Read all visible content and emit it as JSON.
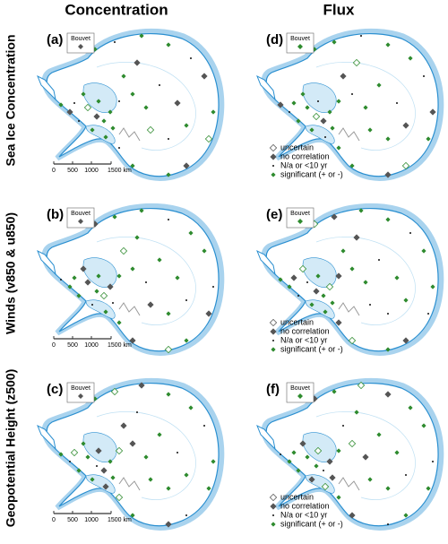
{
  "columns": [
    "Concentration",
    "Flux"
  ],
  "rows": [
    "Sea Ice Concentration",
    "Winds (v850 & u850)",
    "Geopotential Height (z500)"
  ],
  "panels": [
    {
      "label": "(a)",
      "inset": "Bouvet"
    },
    {
      "label": "(d)",
      "inset": "Bouvet"
    },
    {
      "label": "(b)",
      "inset": "Bouvet"
    },
    {
      "label": "(e)",
      "inset": "Bouvet"
    },
    {
      "label": "(c)",
      "inset": "Bouvet"
    },
    {
      "label": "(f)",
      "inset": "Bouvet"
    }
  ],
  "scale_bar": [
    "0",
    "500",
    "1000",
    "1500 km"
  ],
  "legend": [
    "uncertain",
    "no correlation",
    "N/a or <10 yr",
    "significant (+ or -)"
  ]
}
